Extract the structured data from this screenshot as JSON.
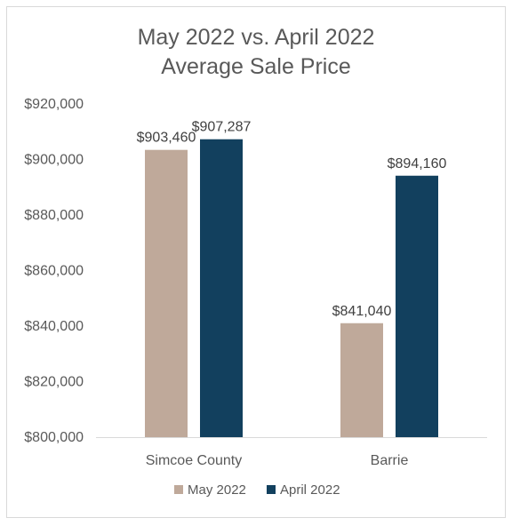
{
  "chart_data": {
    "type": "bar",
    "title": "May 2022 vs. April 2022",
    "subtitle": "Average Sale Price",
    "categories": [
      "Simcoe County",
      "Barrie"
    ],
    "series": [
      {
        "name": "May 2022",
        "color": "#bfa99a",
        "values": [
          903460,
          841040
        ],
        "labels": [
          "$903,460",
          "$841,040"
        ]
      },
      {
        "name": "April 2022",
        "color": "#12405e",
        "values": [
          907287,
          894160
        ],
        "labels": [
          "$907,287",
          "$894,160"
        ]
      }
    ],
    "ylim": [
      800000,
      920000
    ],
    "yticks": [
      800000,
      820000,
      840000,
      860000,
      880000,
      900000,
      920000
    ],
    "ytick_labels": [
      "$800,000",
      "$820,000",
      "$840,000",
      "$860,000",
      "$880,000",
      "$900,000",
      "$920,000"
    ],
    "xlabel": "",
    "ylabel": "",
    "grid": false,
    "legend_position": "bottom"
  }
}
